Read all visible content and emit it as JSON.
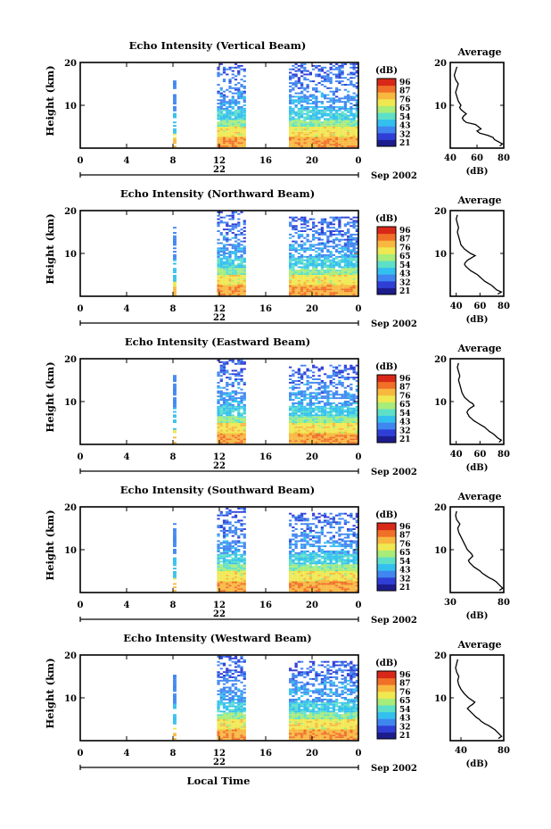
{
  "figure": {
    "xlabel": "Local Time",
    "date_text": "Sep 2002",
    "day_label": "22",
    "colorbar_unit": "(dB)",
    "colorbar_ticks": [
      "96",
      "87",
      "76",
      "65",
      "54",
      "43",
      "32",
      "21"
    ],
    "colormap": [
      "#1c1c8c",
      "#2f3fd6",
      "#3f86f0",
      "#34c0ee",
      "#5ee0c8",
      "#a8ec7a",
      "#f0e850",
      "#f8b840",
      "#f07028",
      "#d82818"
    ],
    "average_title": "Average",
    "average_xlabel": "(dB)"
  },
  "chart_data": [
    {
      "type": "heatmap",
      "title": "Echo Intensity (Vertical Beam)",
      "ylabel": "Height (km)",
      "xlim": [
        0,
        24
      ],
      "ylim": [
        0,
        20
      ],
      "x_ticks": [
        "0",
        "4",
        "8",
        "12",
        "16",
        "20",
        "0"
      ],
      "y_ticks": [
        "20",
        "10"
      ],
      "data_segments_hours": [
        [
          8,
          8.3
        ],
        [
          11.8,
          14.2
        ],
        [
          18,
          24
        ]
      ],
      "colorbar": {
        "unit": "(dB)",
        "ticks": [
          "96",
          "87",
          "76",
          "65",
          "54",
          "43",
          "32",
          "21"
        ]
      },
      "average_profile": {
        "type": "line",
        "title": "Average",
        "xlabel": "(dB)",
        "xlim": [
          40,
          80
        ],
        "ylim": [
          0,
          20
        ],
        "x_ticks": [
          "40",
          "60",
          "80"
        ],
        "y_ticks": [
          "20",
          "10"
        ],
        "height_km": [
          0.5,
          1,
          1.5,
          2,
          2.5,
          3,
          3.5,
          4,
          4.5,
          5,
          5.5,
          6,
          6.5,
          7,
          7.5,
          8,
          8.5,
          9,
          9.5,
          10,
          11,
          12,
          13,
          14,
          15,
          16,
          17,
          18,
          19
        ],
        "values_db": [
          77,
          79,
          76,
          73,
          72,
          68,
          62,
          60,
          63,
          61,
          59,
          52,
          50,
          49,
          50,
          52,
          50,
          48,
          47,
          48,
          46,
          45,
          44,
          45,
          46,
          44,
          43,
          44,
          45
        ]
      }
    },
    {
      "type": "heatmap",
      "title": "Echo Intensity (Northward Beam)",
      "ylabel": "Height (km)",
      "xlim": [
        0,
        24
      ],
      "ylim": [
        0,
        20
      ],
      "x_ticks": [
        "0",
        "4",
        "8",
        "12",
        "16",
        "20",
        "0"
      ],
      "y_ticks": [
        "20",
        "10"
      ],
      "data_segments_hours": [
        [
          8,
          8.3
        ],
        [
          11.8,
          14.2
        ],
        [
          18,
          24
        ]
      ],
      "colorbar": {
        "unit": "(dB)",
        "ticks": [
          "96",
          "87",
          "76",
          "65",
          "54",
          "43",
          "32",
          "21"
        ]
      },
      "average_profile": {
        "type": "line",
        "title": "Average",
        "xlabel": "(dB)",
        "xlim": [
          35,
          80
        ],
        "ylim": [
          0,
          20
        ],
        "x_ticks": [
          "40",
          "60",
          "80"
        ],
        "y_ticks": [
          "20",
          "10"
        ],
        "height_km": [
          0.5,
          1,
          1.5,
          2,
          2.5,
          3,
          3.5,
          4,
          4.5,
          5,
          5.5,
          6,
          6.5,
          7,
          7.5,
          8,
          8.5,
          9,
          9.5,
          10,
          11,
          12,
          13,
          14,
          15,
          16,
          17,
          18,
          19
        ],
        "values_db": [
          75,
          78,
          74,
          72,
          70,
          67,
          64,
          62,
          60,
          58,
          55,
          52,
          50,
          48,
          47,
          48,
          50,
          53,
          56,
          52,
          47,
          44,
          43,
          42,
          41,
          42,
          41,
          40,
          41
        ]
      }
    },
    {
      "type": "heatmap",
      "title": "Echo Intensity (Eastward Beam)",
      "ylabel": "Height (km)",
      "xlim": [
        0,
        24
      ],
      "ylim": [
        0,
        20
      ],
      "x_ticks": [
        "0",
        "4",
        "8",
        "12",
        "16",
        "20",
        "0"
      ],
      "y_ticks": [
        "20",
        "10"
      ],
      "data_segments_hours": [
        [
          8,
          8.3
        ],
        [
          11.8,
          14.2
        ],
        [
          18,
          24
        ]
      ],
      "colorbar": {
        "unit": "(dB)",
        "ticks": [
          "96",
          "87",
          "76",
          "65",
          "54",
          "43",
          "32",
          "21"
        ]
      },
      "average_profile": {
        "type": "line",
        "title": "Average",
        "xlabel": "(dB)",
        "xlim": [
          35,
          80
        ],
        "ylim": [
          0,
          20
        ],
        "x_ticks": [
          "40",
          "60",
          "80"
        ],
        "y_ticks": [
          "20",
          "10"
        ],
        "height_km": [
          0.5,
          1,
          1.5,
          2,
          2.5,
          3,
          3.5,
          4,
          4.5,
          5,
          5.5,
          6,
          6.5,
          7,
          7.5,
          8,
          8.5,
          9,
          9.5,
          10,
          11,
          12,
          13,
          14,
          15,
          16,
          17,
          18,
          19
        ],
        "values_db": [
          76,
          78,
          75,
          73,
          71,
          68,
          66,
          64,
          61,
          58,
          55,
          53,
          51,
          50,
          49,
          50,
          52,
          55,
          54,
          51,
          47,
          45,
          44,
          43,
          42,
          43,
          42,
          41,
          42
        ]
      }
    },
    {
      "type": "heatmap",
      "title": "Echo Intensity (Southward Beam)",
      "ylabel": "Height (km)",
      "xlim": [
        0,
        24
      ],
      "ylim": [
        0,
        20
      ],
      "x_ticks": [
        "0",
        "4",
        "8",
        "12",
        "16",
        "20",
        "0"
      ],
      "y_ticks": [
        "20",
        "10"
      ],
      "data_segments_hours": [
        [
          8,
          8.3
        ],
        [
          11.8,
          14.2
        ],
        [
          18,
          24
        ]
      ],
      "colorbar": {
        "unit": "(dB)",
        "ticks": [
          "96",
          "87",
          "76",
          "65",
          "54",
          "43",
          "32",
          "21"
        ]
      },
      "average_profile": {
        "type": "line",
        "title": "Average",
        "xlabel": "(dB)",
        "xlim": [
          30,
          80
        ],
        "ylim": [
          0,
          20
        ],
        "x_ticks": [
          "30",
          "80"
        ],
        "y_ticks": [
          "20",
          "10"
        ],
        "height_km": [
          0.5,
          1,
          1.5,
          2,
          2.5,
          3,
          3.5,
          4,
          4.5,
          5,
          5.5,
          6,
          6.5,
          7,
          7.5,
          8,
          8.5,
          9,
          9.5,
          10,
          11,
          12,
          13,
          14,
          15,
          16,
          17,
          18,
          19
        ],
        "values_db": [
          76,
          79,
          77,
          75,
          73,
          70,
          66,
          63,
          60,
          58,
          55,
          52,
          50,
          48,
          47,
          49,
          51,
          50,
          48,
          46,
          44,
          42,
          40,
          38,
          37,
          39,
          36,
          35,
          36
        ]
      }
    },
    {
      "type": "heatmap",
      "title": "Echo Intensity (Westward Beam)",
      "ylabel": "Height (km)",
      "xlim": [
        0,
        24
      ],
      "ylim": [
        0,
        20
      ],
      "x_ticks": [
        "0",
        "4",
        "8",
        "12",
        "16",
        "20",
        "0"
      ],
      "y_ticks": [
        "20",
        "10"
      ],
      "data_segments_hours": [
        [
          8,
          8.3
        ],
        [
          11.8,
          14.2
        ],
        [
          18,
          24
        ]
      ],
      "colorbar": {
        "unit": "(dB)",
        "ticks": [
          "96",
          "87",
          "76",
          "65",
          "54",
          "43",
          "32",
          "21"
        ]
      },
      "average_profile": {
        "type": "line",
        "title": "Average",
        "xlabel": "(dB)",
        "xlim": [
          30,
          80
        ],
        "ylim": [
          0,
          20
        ],
        "x_ticks": [
          "40",
          "80"
        ],
        "y_ticks": [
          "20",
          "10"
        ],
        "height_km": [
          0.5,
          1,
          1.5,
          2,
          2.5,
          3,
          3.5,
          4,
          4.5,
          5,
          5.5,
          6,
          6.5,
          7,
          7.5,
          8,
          8.5,
          9,
          9.5,
          10,
          11,
          12,
          13,
          14,
          15,
          16,
          17,
          18,
          19
        ],
        "values_db": [
          75,
          78,
          76,
          74,
          72,
          69,
          66,
          62,
          59,
          57,
          54,
          52,
          50,
          48,
          46,
          48,
          51,
          53,
          50,
          47,
          43,
          40,
          38,
          37,
          38,
          36,
          35,
          36,
          37
        ]
      }
    }
  ]
}
